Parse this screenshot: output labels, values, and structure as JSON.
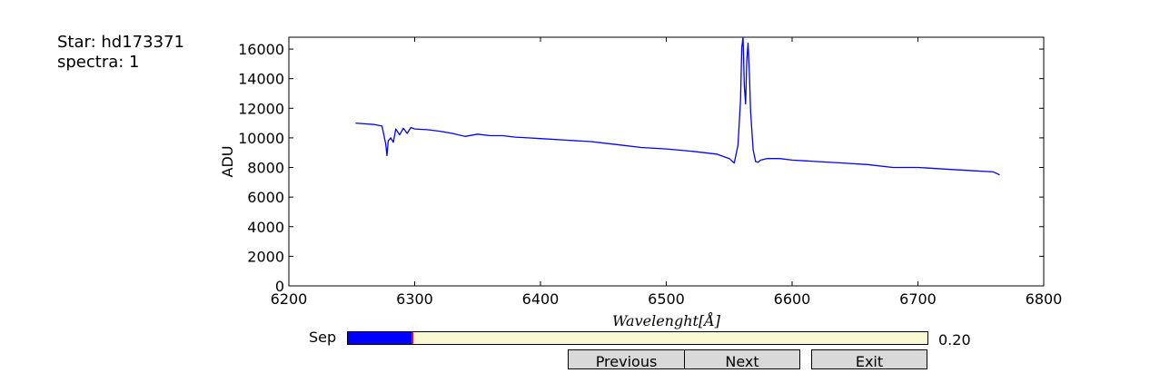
{
  "info": {
    "star_line": "Star: hd173371",
    "spectra_line": "spectra: 1"
  },
  "chart_data": {
    "type": "line",
    "ylabel": "ADU",
    "xlabel": "Wavelenght[Å]",
    "xlim": [
      6200,
      6800
    ],
    "ylim": [
      0,
      16800
    ],
    "xticks": [
      "6200",
      "6300",
      "6400",
      "6500",
      "6600",
      "6700",
      "6800"
    ],
    "yticks": [
      "0",
      "2000",
      "4000",
      "6000",
      "8000",
      "10000",
      "12000",
      "14000",
      "16000"
    ],
    "grid": false,
    "series": [
      {
        "color": "#0000ff",
        "x": [
          6253,
          6260,
          6268,
          6274,
          6277,
          6278,
          6279,
          6281,
          6283,
          6285,
          6288,
          6291,
          6294,
          6297,
          6300,
          6310,
          6320,
          6330,
          6340,
          6350,
          6360,
          6370,
          6380,
          6390,
          6400,
          6420,
          6440,
          6460,
          6480,
          6500,
          6520,
          6540,
          6550,
          6554,
          6557,
          6559,
          6560,
          6561,
          6562,
          6563,
          6564,
          6565,
          6566,
          6567,
          6569,
          6571,
          6573,
          6575,
          6580,
          6590,
          6600,
          6620,
          6640,
          6660,
          6680,
          6700,
          6720,
          6740,
          6760,
          6765
        ],
        "y": [
          11000,
          10950,
          10900,
          10800,
          9600,
          8800,
          9800,
          10000,
          9700,
          10600,
          10200,
          10650,
          10300,
          10700,
          10600,
          10550,
          10450,
          10300,
          10100,
          10250,
          10150,
          10150,
          10050,
          10000,
          9950,
          9850,
          9750,
          9550,
          9350,
          9250,
          9100,
          8900,
          8600,
          8300,
          9500,
          12500,
          16100,
          16800,
          13500,
          12300,
          15200,
          16400,
          14500,
          11800,
          9200,
          8400,
          8350,
          8500,
          8600,
          8600,
          8500,
          8400,
          8300,
          8200,
          8000,
          8000,
          7900,
          7800,
          7700,
          7500
        ]
      }
    ]
  },
  "controls": {
    "slider_label": "Sep",
    "slider_value_text": "0.20",
    "slider_fill_fraction": 0.111,
    "buttons": {
      "previous": "Previous",
      "next": "Next",
      "exit": "Exit"
    }
  }
}
